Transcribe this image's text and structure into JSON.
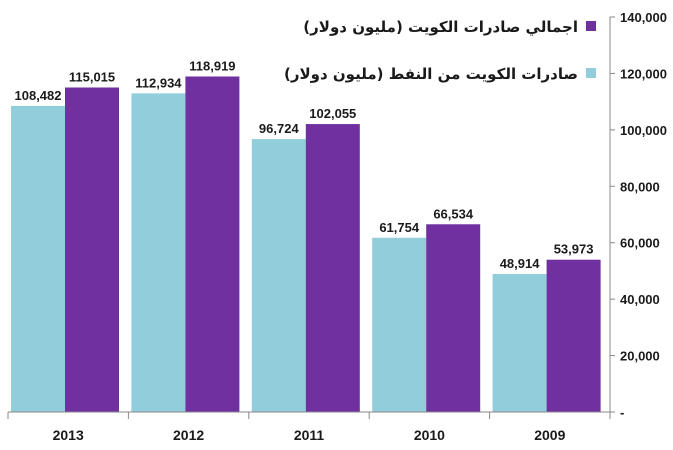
{
  "chart_data": {
    "type": "bar",
    "categories": [
      "2013",
      "2012",
      "2011",
      "2010",
      "2009"
    ],
    "series": [
      {
        "name": "صادرات الكويت من النفط (مليون دولار)",
        "color": "#92CDDC",
        "values": [
          108482,
          112934,
          96724,
          61754,
          48914
        ],
        "labels": [
          "108,482",
          "112,934",
          "96,724",
          "61,754",
          "48,914"
        ]
      },
      {
        "name": "اجمالي صادرات الكويت (مليون دولار)",
        "color": "#7030A0",
        "values": [
          115015,
          118919,
          102055,
          66534,
          53973
        ],
        "labels": [
          "115,015",
          "118,919",
          "102,055",
          "66,534",
          "53,973"
        ]
      }
    ],
    "ylim": [
      0,
      140000
    ],
    "yticks": [
      0,
      20000,
      40000,
      60000,
      80000,
      100000,
      120000,
      140000
    ],
    "ytick_labels": [
      "-",
      "20,000",
      "40,000",
      "60,000",
      "80,000",
      "100,000",
      "120,000",
      "140,000"
    ],
    "y_axis_position": "right",
    "legend_position": "top-right",
    "grid": false
  }
}
